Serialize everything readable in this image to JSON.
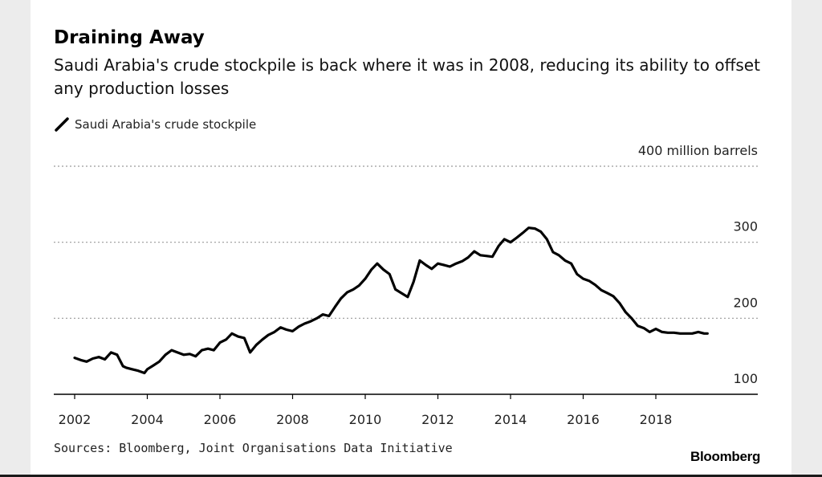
{
  "header": {
    "title": "Draining Away",
    "subtitle": "Saudi Arabia's crude stockpile is back where it was in 2008, reducing its ability to offset any production losses"
  },
  "footer": {
    "source": "Sources: Bloomberg, Joint Organisations Data Initiative",
    "brand": "Bloomberg"
  },
  "colors": {
    "line": "#000000",
    "grid": "#9a9a9a",
    "axis": "#000000"
  },
  "chart_data": {
    "type": "line",
    "title": "Draining Away",
    "subtitle": "Saudi Arabia's crude stockpile is back where it was in 2008, reducing its ability to offset any production losses",
    "ylabel": "400 million barrels",
    "xlabel": "",
    "xlim": [
      2001.5,
      2020.7
    ],
    "ylim": [
      100,
      400
    ],
    "y_ticks": [
      {
        "value": 100,
        "label": "100"
      },
      {
        "value": 200,
        "label": "200"
      },
      {
        "value": 300,
        "label": "300"
      },
      {
        "value": 400,
        "label": "400 million barrels"
      }
    ],
    "x_ticks": [
      {
        "value": 2002,
        "label": "2002"
      },
      {
        "value": 2004,
        "label": "2004"
      },
      {
        "value": 2006,
        "label": "2006"
      },
      {
        "value": 2008,
        "label": "2008"
      },
      {
        "value": 2010,
        "label": "2010"
      },
      {
        "value": 2012,
        "label": "2012"
      },
      {
        "value": 2014,
        "label": "2014"
      },
      {
        "value": 2016,
        "label": "2016"
      },
      {
        "value": 2018,
        "label": "2018"
      }
    ],
    "grid": "horizontal dotted",
    "legend_position": "top-left",
    "series": [
      {
        "name": "Saudi Arabia's crude stockpile",
        "x": [
          2002.0,
          2002.17,
          2002.33,
          2002.5,
          2002.67,
          2002.83,
          2003.0,
          2003.17,
          2003.33,
          2003.42,
          2003.58,
          2003.75,
          2003.92,
          2004.0,
          2004.17,
          2004.33,
          2004.5,
          2004.67,
          2004.83,
          2005.0,
          2005.17,
          2005.33,
          2005.5,
          2005.67,
          2005.83,
          2006.0,
          2006.17,
          2006.33,
          2006.5,
          2006.67,
          2006.83,
          2007.0,
          2007.17,
          2007.33,
          2007.5,
          2007.67,
          2007.83,
          2008.0,
          2008.17,
          2008.33,
          2008.5,
          2008.67,
          2008.83,
          2009.0,
          2009.17,
          2009.33,
          2009.5,
          2009.67,
          2009.83,
          2010.0,
          2010.17,
          2010.33,
          2010.5,
          2010.67,
          2010.83,
          2011.0,
          2011.17,
          2011.33,
          2011.5,
          2011.67,
          2011.83,
          2012.0,
          2012.17,
          2012.33,
          2012.5,
          2012.67,
          2012.83,
          2013.0,
          2013.17,
          2013.33,
          2013.5,
          2013.67,
          2013.83,
          2014.0,
          2014.17,
          2014.33,
          2014.5,
          2014.67,
          2014.83,
          2015.0,
          2015.17,
          2015.33,
          2015.5,
          2015.67,
          2015.83,
          2016.0,
          2016.17,
          2016.33,
          2016.5,
          2016.67,
          2016.83,
          2017.0,
          2017.17,
          2017.33,
          2017.5,
          2017.67,
          2017.83,
          2018.0,
          2018.17,
          2018.33,
          2018.5,
          2018.67,
          2018.83,
          2019.0,
          2019.17,
          2019.33,
          2019.42
        ],
        "values": [
          148,
          145,
          143,
          147,
          149,
          146,
          155,
          152,
          137,
          135,
          133,
          131,
          128,
          133,
          138,
          143,
          152,
          158,
          155,
          152,
          153,
          150,
          158,
          160,
          158,
          168,
          172,
          180,
          176,
          174,
          155,
          165,
          172,
          178,
          182,
          188,
          185,
          183,
          189,
          193,
          196,
          200,
          205,
          203,
          215,
          226,
          234,
          238,
          243,
          252,
          264,
          272,
          264,
          258,
          238,
          233,
          228,
          248,
          276,
          270,
          265,
          272,
          270,
          268,
          272,
          275,
          280,
          288,
          283,
          282,
          281,
          295,
          304,
          300,
          306,
          312,
          319,
          318,
          314,
          304,
          287,
          283,
          276,
          272,
          258,
          252,
          249,
          244,
          237,
          233,
          229,
          220,
          208,
          200,
          190,
          187,
          182,
          186,
          182,
          181,
          181,
          180,
          180,
          180,
          182,
          180,
          180
        ]
      }
    ]
  }
}
